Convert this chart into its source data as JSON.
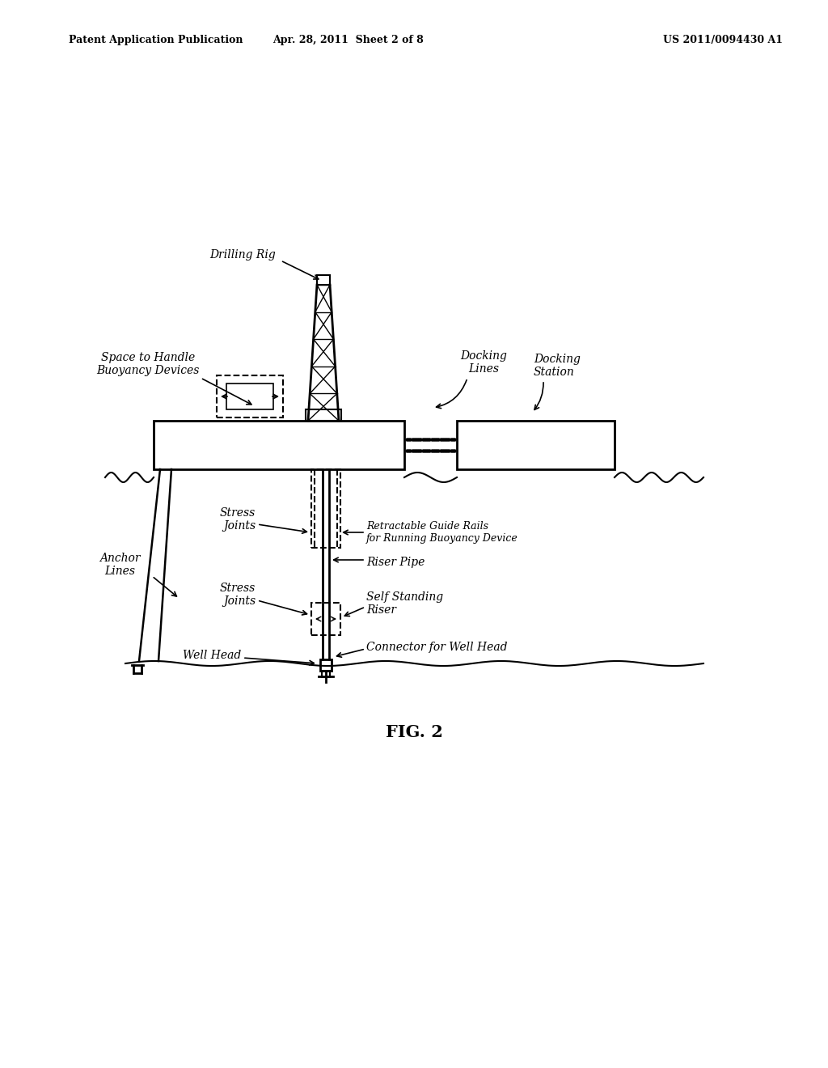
{
  "bg_color": "#ffffff",
  "line_color": "#000000",
  "header_left": "Patent Application Publication",
  "header_mid": "Apr. 28, 2011  Sheet 2 of 8",
  "header_right": "US 2011/0094430 A1",
  "figure_label": "FIG. 2",
  "label_fs": 10,
  "labels": {
    "drilling_rig": "Drilling Rig",
    "docking_lines": "Docking\nLines",
    "docking_station": "Docking\nStation",
    "space_buoyancy": "Space to Handle\nBuoyancy Devices",
    "stress_joints_upper": "Stress\nJoints",
    "retractable_guide": "Retractable Guide Rails\nfor Running Buoyancy Device",
    "riser_pipe": "Riser Pipe",
    "anchor_lines": "Anchor\nLines",
    "stress_joints_lower": "Stress\nJoints",
    "self_standing_riser": "Self Standing\nRiser",
    "connector_wellhead": "Connector for Well Head",
    "well_head": "Well Head"
  }
}
